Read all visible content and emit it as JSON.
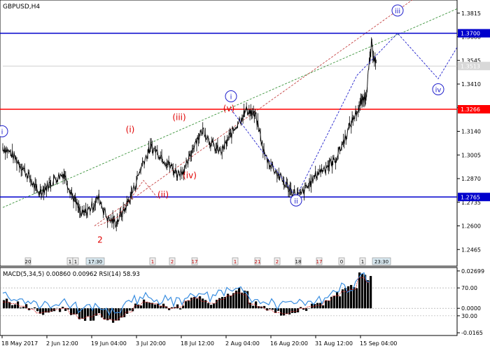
{
  "window": {
    "symbol_label": "GBPUSD,H4"
  },
  "price_axis": {
    "ticks": [
      "1.3815",
      "1.3680",
      "1.3545",
      "1.3410",
      "1.3275",
      "1.3140",
      "1.3005",
      "1.2870",
      "1.2735",
      "1.2600",
      "1.2465"
    ],
    "min": 1.237,
    "max": 1.389
  },
  "levels": [
    {
      "value": 1.37,
      "label": "1.3700",
      "color": "#0000cc"
    },
    {
      "value": 1.3266,
      "label": "1.3266",
      "color": "#ff0000"
    },
    {
      "value": 1.2765,
      "label": "1.2765",
      "color": "#0000cc"
    }
  ],
  "current_price": {
    "value": 1.3513,
    "label": "1.3513"
  },
  "waves": [
    {
      "label": "i",
      "color": "#2020cc",
      "circled": true
    },
    {
      "label": "(i)",
      "color": "#e00000",
      "circled": false
    },
    {
      "label": "(ii)",
      "color": "#e00000",
      "circled": false
    },
    {
      "label": "(iii)",
      "color": "#e00000",
      "circled": false
    },
    {
      "label": "(iv)",
      "color": "#e00000",
      "circled": false
    },
    {
      "label": "(v)",
      "color": "#e00000",
      "circled": false
    },
    {
      "label": "2",
      "color": "#e00000",
      "circled": false
    },
    {
      "label": "i",
      "color": "#2020cc",
      "circled": true
    },
    {
      "label": "ii",
      "color": "#2020cc",
      "circled": true
    },
    {
      "label": "iii",
      "color": "#2020cc",
      "circled": true
    },
    {
      "label": "iv",
      "color": "#2020cc",
      "circled": true
    }
  ],
  "time_markers": [
    "20",
    "1",
    "1",
    "17:30",
    "1",
    "2",
    "17",
    "1",
    "21",
    "2",
    "18",
    "17",
    "0",
    "1",
    "23:30"
  ],
  "indicators": {
    "legend": "MACD(5,34,5) 0.00860 0.00962 RSI(14) 58.93",
    "axis_ticks": [
      "0.02699",
      "70.00",
      "0.0000",
      "30.00",
      "-0.0165"
    ]
  },
  "time_axis": {
    "labels": [
      "18 May 2017",
      "2 Jun 12:00",
      "19 Jun 04:00",
      "3 Jul 20:00",
      "18 Jul 12:00",
      "2 Aug 04:00",
      "16 Aug 20:00",
      "31 Aug 12:00",
      "15 Sep 04:00"
    ]
  },
  "chart_data": {
    "type": "line",
    "title": "GBPUSD,H4",
    "x": [
      0,
      25,
      50,
      75,
      100,
      125,
      150,
      175,
      200,
      225,
      250,
      275,
      300,
      325,
      350,
      375,
      400,
      425,
      450,
      475,
      500,
      525,
      550,
      575,
      600,
      625,
      650,
      675,
      700,
      725,
      750,
      775,
      800,
      825,
      850,
      875,
      900,
      925,
      950,
      975,
      1000,
      1025,
      1040,
      1055,
      1070
    ],
    "series": [
      {
        "name": "GBPUSD,H4",
        "values": [
          1.305,
          1.301,
          1.295,
          1.288,
          1.279,
          1.282,
          1.287,
          1.29,
          1.277,
          1.266,
          1.27,
          1.276,
          1.264,
          1.262,
          1.27,
          1.281,
          1.296,
          1.305,
          1.301,
          1.295,
          1.29,
          1.293,
          1.308,
          1.315,
          1.306,
          1.302,
          1.311,
          1.32,
          1.3266,
          1.322,
          1.3,
          1.293,
          1.286,
          1.28,
          1.277,
          1.283,
          1.29,
          1.294,
          1.297,
          1.308,
          1.32,
          1.33,
          1.335,
          1.363,
          1.3513
        ]
      }
    ],
    "ylim": [
      1.237,
      1.389
    ]
  }
}
